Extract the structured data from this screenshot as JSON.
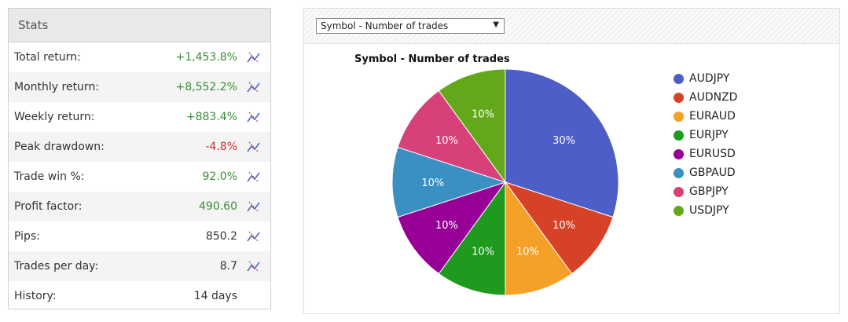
{
  "stats": {
    "title": "Stats",
    "rows": [
      {
        "label": "Total return:",
        "value": "+1,453.8%",
        "tone": "pos",
        "chart": true
      },
      {
        "label": "Monthly return:",
        "value": "+8,552.2%",
        "tone": "pos",
        "chart": true
      },
      {
        "label": "Weekly return:",
        "value": "+883.4%",
        "tone": "pos",
        "chart": true
      },
      {
        "label": "Peak drawdown:",
        "value": "-4.8%",
        "tone": "neg",
        "chart": true
      },
      {
        "label": "Trade win %:",
        "value": "92.0%",
        "tone": "pos",
        "chart": true
      },
      {
        "label": "Profit factor:",
        "value": "490.60",
        "tone": "pos",
        "chart": true
      },
      {
        "label": "Pips:",
        "value": "850.2",
        "tone": "neu",
        "chart": true
      },
      {
        "label": "Trades per day:",
        "value": "8.7",
        "tone": "neu",
        "chart": true
      },
      {
        "label": "History:",
        "value": "14 days",
        "tone": "neu",
        "chart": false
      }
    ]
  },
  "chart_panel": {
    "select_value": "Symbol - Number of trades"
  },
  "chart_data": {
    "type": "pie",
    "title": "Symbol - Number of trades",
    "categories": [
      "AUDJPY",
      "AUDNZD",
      "EURAUD",
      "EURJPY",
      "EURUSD",
      "GBPAUD",
      "GBPJPY",
      "USDJPY"
    ],
    "values": [
      30,
      10,
      10,
      10,
      10,
      10,
      10,
      10
    ],
    "labels": [
      "30%",
      "10%",
      "10%",
      "10%",
      "10%",
      "10%",
      "10%",
      "10%"
    ],
    "colors": [
      "#4d5ec7",
      "#d64227",
      "#f5a127",
      "#1f9a1f",
      "#960097",
      "#3a90c3",
      "#d6417a",
      "#63a81a"
    ],
    "legend_position": "right"
  }
}
